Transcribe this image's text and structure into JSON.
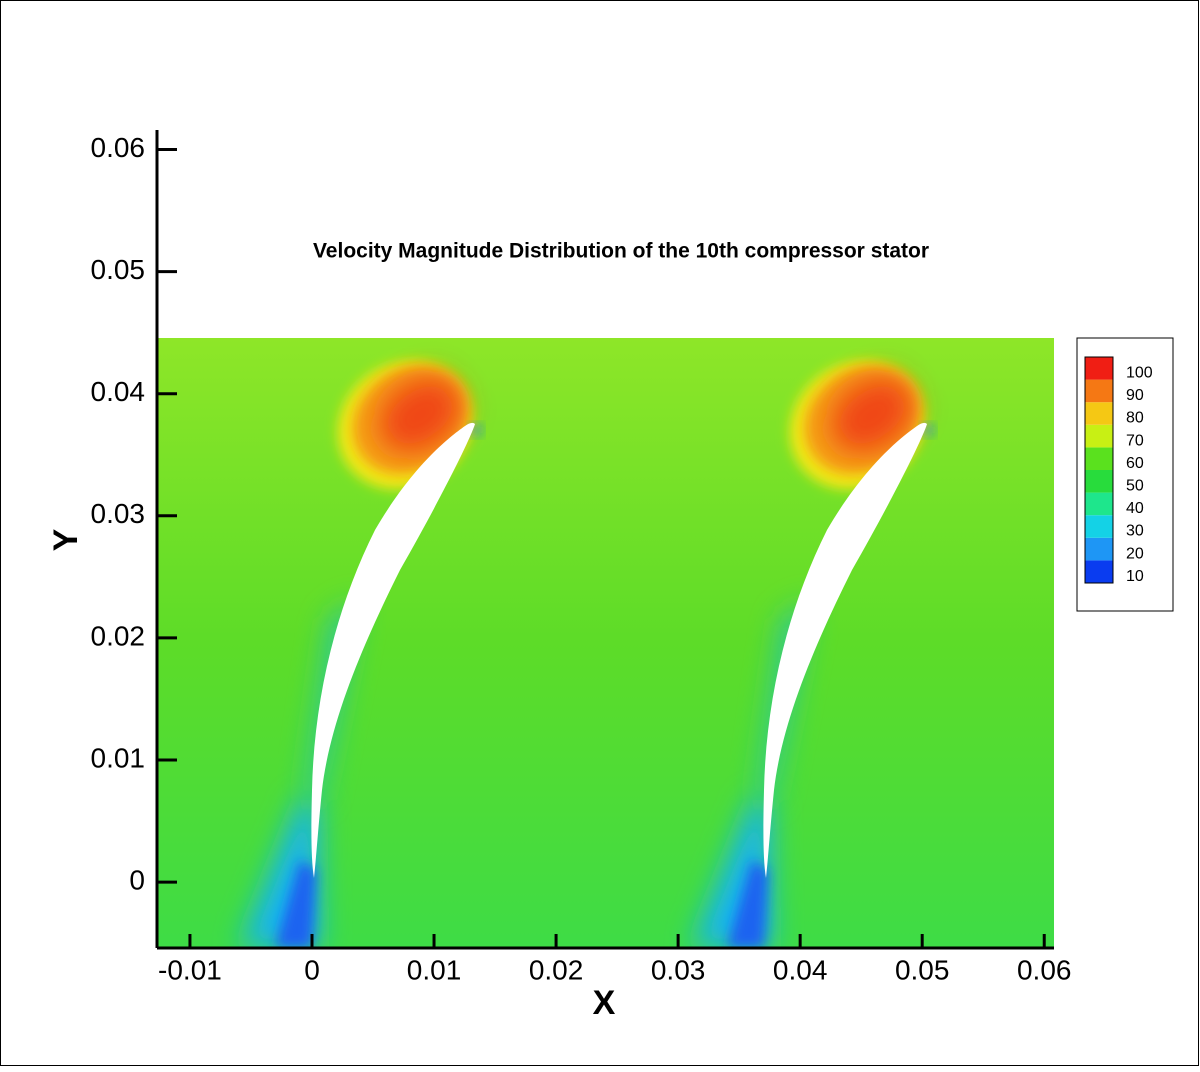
{
  "chart_data": {
    "type": "contour",
    "title": "Velocity Magnitude Distribution of the 10th compressor stator",
    "x_label": "X",
    "y_label": "Y",
    "xlim": [
      -0.0127,
      0.0608
    ],
    "ylim": [
      -0.0054,
      0.0616
    ],
    "xticks": [
      -0.01,
      0,
      0.01,
      0.02,
      0.03,
      0.04,
      0.05,
      0.06
    ],
    "yticks": [
      0,
      0.01,
      0.02,
      0.03,
      0.04,
      0.05,
      0.06
    ],
    "colorbar": {
      "levels": [
        10,
        20,
        30,
        40,
        50,
        60,
        70,
        80,
        90,
        100
      ],
      "colors": [
        "#0a3cf0",
        "#1e96f5",
        "#14d2e6",
        "#1ee68c",
        "#28dc3c",
        "#5ae11e",
        "#c8f014",
        "#f5c814",
        "#f57814",
        "#f01e14"
      ]
    }
  }
}
